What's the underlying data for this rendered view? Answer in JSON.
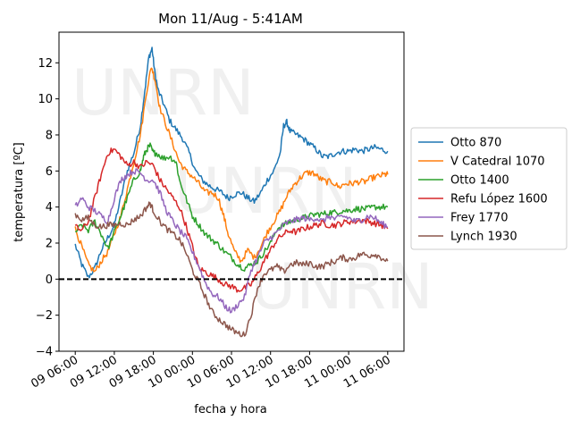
{
  "chart_data": {
    "type": "line",
    "title": "Mon 11/Aug - 5:41AM",
    "xlabel": "fecha y hora",
    "ylabel": "temperatura [ºC]",
    "watermark": "UNRN",
    "x_unit": "hours since 09 06:00",
    "xlim": [
      -2.5,
      50.5
    ],
    "ylim": [
      -4,
      13.7
    ],
    "x_ticks": [
      {
        "value": 0,
        "label": "09 06:00"
      },
      {
        "value": 6,
        "label": "09 12:00"
      },
      {
        "value": 12,
        "label": "09 18:00"
      },
      {
        "value": 18,
        "label": "10 00:00"
      },
      {
        "value": 24,
        "label": "10 06:00"
      },
      {
        "value": 30,
        "label": "10 12:00"
      },
      {
        "value": 36,
        "label": "10 18:00"
      },
      {
        "value": 42,
        "label": "11 00:00"
      },
      {
        "value": 48,
        "label": "11 06:00"
      }
    ],
    "y_ticks": [
      -4,
      -2,
      0,
      2,
      4,
      6,
      8,
      10,
      12
    ],
    "reference_line": {
      "y": 0,
      "style": "dashed",
      "color": "#000000"
    },
    "legend_position": "outside-right",
    "series": [
      {
        "name": "Otto 870",
        "color": "#1f77b4",
        "points": [
          [
            0,
            1.9
          ],
          [
            1,
            0.8
          ],
          [
            2,
            0.1
          ],
          [
            3,
            0.6
          ],
          [
            4,
            1.6
          ],
          [
            5,
            2.3
          ],
          [
            6,
            3.0
          ],
          [
            7,
            4.5
          ],
          [
            8,
            6.0
          ],
          [
            9,
            7.0
          ],
          [
            10,
            8.5
          ],
          [
            10.7,
            10.5
          ],
          [
            11.3,
            12.3
          ],
          [
            11.8,
            12.8
          ],
          [
            12.2,
            11.5
          ],
          [
            12.7,
            10.5
          ],
          [
            13.5,
            9.8
          ],
          [
            14.5,
            8.8
          ],
          [
            15.5,
            8.3
          ],
          [
            16.5,
            7.8
          ],
          [
            17.5,
            7.0
          ],
          [
            18.5,
            6.0
          ],
          [
            19.5,
            5.5
          ],
          [
            20.5,
            5.2
          ],
          [
            21.5,
            5.0
          ],
          [
            22.5,
            4.8
          ],
          [
            23.5,
            4.5
          ],
          [
            24.5,
            4.7
          ],
          [
            25.5,
            4.8
          ],
          [
            26.5,
            4.5
          ],
          [
            27.5,
            4.3
          ],
          [
            28.5,
            4.8
          ],
          [
            29.5,
            5.5
          ],
          [
            30.5,
            6.0
          ],
          [
            31.5,
            7.0
          ],
          [
            32,
            8.5
          ],
          [
            32.5,
            8.7
          ],
          [
            33,
            8.2
          ],
          [
            34,
            8.0
          ],
          [
            35,
            7.8
          ],
          [
            36,
            7.5
          ],
          [
            37,
            7.2
          ],
          [
            38,
            6.8
          ],
          [
            39,
            6.8
          ],
          [
            40,
            7.0
          ],
          [
            41,
            7.1
          ],
          [
            42,
            7.1
          ],
          [
            43,
            7.2
          ],
          [
            44,
            7.1
          ],
          [
            45,
            7.2
          ],
          [
            46,
            7.3
          ],
          [
            47,
            7.2
          ],
          [
            48,
            7.1
          ]
        ]
      },
      {
        "name": "V Catedral 1070",
        "color": "#ff7f0e",
        "points": [
          [
            0,
            2.8
          ],
          [
            1,
            1.8
          ],
          [
            2,
            0.8
          ],
          [
            3,
            0.4
          ],
          [
            4,
            1.0
          ],
          [
            5,
            1.5
          ],
          [
            6,
            2.5
          ],
          [
            7,
            3.5
          ],
          [
            8,
            5.0
          ],
          [
            9,
            6.5
          ],
          [
            10,
            8.0
          ],
          [
            11,
            10.5
          ],
          [
            11.7,
            11.8
          ],
          [
            12.3,
            11.0
          ],
          [
            13,
            9.5
          ],
          [
            14,
            8.5
          ],
          [
            15,
            7.5
          ],
          [
            16,
            6.5
          ],
          [
            17,
            6.0
          ],
          [
            18,
            5.7
          ],
          [
            19,
            5.3
          ],
          [
            20,
            4.8
          ],
          [
            21,
            4.8
          ],
          [
            22,
            4.5
          ],
          [
            22.8,
            3.5
          ],
          [
            23.5,
            2.5
          ],
          [
            24.5,
            1.5
          ],
          [
            25.5,
            1.0
          ],
          [
            26.5,
            1.6
          ],
          [
            27.5,
            1.2
          ],
          [
            28.5,
            1.8
          ],
          [
            29.5,
            2.6
          ],
          [
            30.5,
            3.2
          ],
          [
            31.5,
            3.8
          ],
          [
            32.5,
            4.6
          ],
          [
            33.5,
            5.2
          ],
          [
            34.5,
            5.6
          ],
          [
            35.5,
            5.9
          ],
          [
            36.5,
            5.9
          ],
          [
            37.5,
            5.6
          ],
          [
            38.5,
            5.4
          ],
          [
            39.5,
            5.4
          ],
          [
            40.5,
            5.1
          ],
          [
            41.5,
            5.3
          ],
          [
            42.5,
            5.3
          ],
          [
            43.5,
            5.4
          ],
          [
            44.5,
            5.4
          ],
          [
            45.5,
            5.6
          ],
          [
            46.5,
            5.7
          ],
          [
            47.5,
            5.8
          ],
          [
            48,
            5.8
          ]
        ]
      },
      {
        "name": "Otto 1400",
        "color": "#2ca02c",
        "points": [
          [
            0,
            2.6
          ],
          [
            1,
            3.0
          ],
          [
            2,
            2.7
          ],
          [
            3,
            3.2
          ],
          [
            4,
            2.5
          ],
          [
            5,
            1.7
          ],
          [
            6,
            2.6
          ],
          [
            7,
            3.5
          ],
          [
            8,
            4.5
          ],
          [
            9,
            5.5
          ],
          [
            10,
            6.0
          ],
          [
            10.5,
            6.8
          ],
          [
            11,
            7.2
          ],
          [
            11.5,
            7.4
          ],
          [
            12,
            7.0
          ],
          [
            12.5,
            7.0
          ],
          [
            13.5,
            6.7
          ],
          [
            14.5,
            6.8
          ],
          [
            15.5,
            6.5
          ],
          [
            16,
            5.5
          ],
          [
            17,
            4.5
          ],
          [
            18,
            3.5
          ],
          [
            19,
            3.0
          ],
          [
            20,
            2.5
          ],
          [
            21,
            2.2
          ],
          [
            22,
            1.9
          ],
          [
            23,
            1.5
          ],
          [
            24,
            1.2
          ],
          [
            25,
            0.8
          ],
          [
            26,
            0.6
          ],
          [
            27,
            0.8
          ],
          [
            28,
            1.0
          ],
          [
            29,
            1.5
          ],
          [
            30,
            2.0
          ],
          [
            31,
            2.8
          ],
          [
            32,
            3.0
          ],
          [
            33,
            3.2
          ],
          [
            34,
            3.3
          ],
          [
            35,
            3.4
          ],
          [
            36,
            3.5
          ],
          [
            37,
            3.6
          ],
          [
            38,
            3.6
          ],
          [
            39,
            3.7
          ],
          [
            40,
            3.7
          ],
          [
            41,
            3.8
          ],
          [
            42,
            3.8
          ],
          [
            43,
            3.9
          ],
          [
            44,
            3.9
          ],
          [
            45,
            3.9
          ],
          [
            46,
            4.0
          ],
          [
            47,
            4.0
          ],
          [
            48,
            4.0
          ]
        ]
      },
      {
        "name": "Refu López 1600",
        "color": "#d62728",
        "points": [
          [
            0,
            2.9
          ],
          [
            1,
            2.7
          ],
          [
            2,
            3.2
          ],
          [
            3,
            4.5
          ],
          [
            4,
            5.8
          ],
          [
            5,
            7.0
          ],
          [
            6,
            7.2
          ],
          [
            7,
            6.8
          ],
          [
            8,
            6.3
          ],
          [
            9,
            6.5
          ],
          [
            10,
            6.2
          ],
          [
            11,
            6.5
          ],
          [
            12,
            6.3
          ],
          [
            13,
            5.5
          ],
          [
            14,
            5.0
          ],
          [
            15,
            4.5
          ],
          [
            16,
            4.0
          ],
          [
            17,
            3.0
          ],
          [
            18,
            1.8
          ],
          [
            19,
            0.6
          ],
          [
            20,
            0.4
          ],
          [
            21,
            0.2
          ],
          [
            22,
            0.0
          ],
          [
            23,
            -0.3
          ],
          [
            24,
            -0.4
          ],
          [
            25,
            -0.6
          ],
          [
            26,
            -0.5
          ],
          [
            27,
            -0.3
          ],
          [
            28,
            0.3
          ],
          [
            29,
            1.0
          ],
          [
            30,
            1.6
          ],
          [
            31,
            2.2
          ],
          [
            32,
            2.5
          ],
          [
            33,
            2.7
          ],
          [
            34,
            2.6
          ],
          [
            35,
            2.8
          ],
          [
            36,
            2.9
          ],
          [
            37,
            3.0
          ],
          [
            38,
            3.1
          ],
          [
            39,
            3.0
          ],
          [
            40,
            3.0
          ],
          [
            41,
            3.1
          ],
          [
            42,
            3.2
          ],
          [
            43,
            3.2
          ],
          [
            44,
            3.3
          ],
          [
            45,
            3.2
          ],
          [
            46,
            3.1
          ],
          [
            47,
            3.0
          ],
          [
            48,
            2.8
          ]
        ]
      },
      {
        "name": "Frey 1770",
        "color": "#9467bd",
        "points": [
          [
            0,
            4.0
          ],
          [
            1,
            4.5
          ],
          [
            2,
            4.0
          ],
          [
            3,
            3.8
          ],
          [
            4,
            3.5
          ],
          [
            5,
            3.2
          ],
          [
            6,
            4.5
          ],
          [
            7,
            5.5
          ],
          [
            8,
            5.8
          ],
          [
            9,
            6.0
          ],
          [
            10,
            5.9
          ],
          [
            11,
            5.5
          ],
          [
            12,
            5.5
          ],
          [
            13,
            4.8
          ],
          [
            14,
            3.8
          ],
          [
            15,
            3.2
          ],
          [
            16,
            2.7
          ],
          [
            17,
            2.3
          ],
          [
            18,
            1.5
          ],
          [
            19,
            0.7
          ],
          [
            20,
            -0.2
          ],
          [
            21,
            -0.8
          ],
          [
            22,
            -1.0
          ],
          [
            23,
            -1.5
          ],
          [
            24,
            -1.8
          ],
          [
            25,
            -1.4
          ],
          [
            26,
            -1.0
          ],
          [
            27,
            0.5
          ],
          [
            28,
            1.2
          ],
          [
            29,
            2.0
          ],
          [
            30,
            2.3
          ],
          [
            31,
            2.6
          ],
          [
            32,
            3.0
          ],
          [
            33,
            3.2
          ],
          [
            34,
            3.3
          ],
          [
            35,
            3.4
          ],
          [
            36,
            3.3
          ],
          [
            37,
            3.4
          ],
          [
            38,
            3.2
          ],
          [
            39,
            3.5
          ],
          [
            40,
            3.3
          ],
          [
            41,
            3.5
          ],
          [
            42,
            3.4
          ],
          [
            43,
            3.2
          ],
          [
            44,
            3.3
          ],
          [
            45,
            3.5
          ],
          [
            46,
            3.4
          ],
          [
            47,
            3.1
          ],
          [
            48,
            2.9
          ]
        ]
      },
      {
        "name": "Lynch 1930",
        "color": "#8c564b",
        "points": [
          [
            0,
            3.6
          ],
          [
            1,
            3.3
          ],
          [
            2,
            3.4
          ],
          [
            3,
            3.0
          ],
          [
            4,
            2.9
          ],
          [
            5,
            3.0
          ],
          [
            6,
            3.0
          ],
          [
            7,
            3.1
          ],
          [
            8,
            3.0
          ],
          [
            9,
            3.3
          ],
          [
            10,
            3.5
          ],
          [
            11,
            4.0
          ],
          [
            11.5,
            4.2
          ],
          [
            12,
            3.8
          ],
          [
            13,
            3.2
          ],
          [
            14,
            2.8
          ],
          [
            15,
            2.5
          ],
          [
            16,
            2.2
          ],
          [
            17,
            1.5
          ],
          [
            18,
            0.5
          ],
          [
            19,
            -0.2
          ],
          [
            20,
            -1.0
          ],
          [
            21,
            -1.8
          ],
          [
            22,
            -2.2
          ],
          [
            23,
            -2.5
          ],
          [
            24,
            -2.8
          ],
          [
            25,
            -3.0
          ],
          [
            26,
            -3.1
          ],
          [
            27,
            -2.0
          ],
          [
            28,
            -0.5
          ],
          [
            29,
            0.3
          ],
          [
            30,
            0.5
          ],
          [
            31,
            0.7
          ],
          [
            32,
            0.4
          ],
          [
            33,
            0.8
          ],
          [
            34,
            0.9
          ],
          [
            35,
            0.8
          ],
          [
            36,
            0.9
          ],
          [
            37,
            0.7
          ],
          [
            38,
            0.7
          ],
          [
            39,
            0.9
          ],
          [
            40,
            1.0
          ],
          [
            41,
            1.2
          ],
          [
            42,
            1.1
          ],
          [
            43,
            1.2
          ],
          [
            44,
            1.4
          ],
          [
            45,
            1.3
          ],
          [
            46,
            1.4
          ],
          [
            47,
            1.2
          ],
          [
            48,
            1.0
          ]
        ]
      }
    ]
  }
}
